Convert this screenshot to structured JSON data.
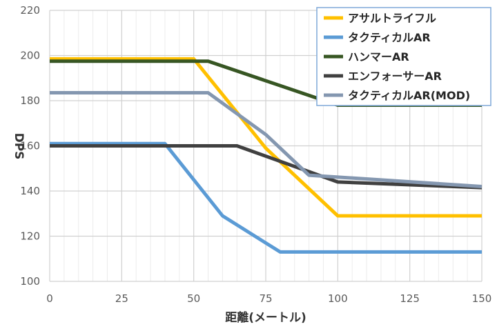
{
  "chart_data": {
    "type": "line",
    "title": "",
    "xlabel": "距離(メートル)",
    "ylabel": "DPS",
    "xlim": [
      0,
      150
    ],
    "ylim": [
      100,
      220
    ],
    "x_ticks": [
      0,
      25,
      50,
      75,
      100,
      125,
      150
    ],
    "y_ticks": [
      100,
      120,
      140,
      160,
      180,
      200,
      220
    ],
    "x_minor_step": 5,
    "grid": true,
    "legend_position": "top-right",
    "series": [
      {
        "name": "アサルトライフル",
        "color": "#FFC000",
        "points": [
          [
            0,
            198.5
          ],
          [
            50,
            198.5
          ],
          [
            75,
            159
          ],
          [
            100,
            129
          ],
          [
            150,
            129
          ]
        ]
      },
      {
        "name": "タクティカルAR",
        "color": "#5B9BD5",
        "points": [
          [
            0,
            161
          ],
          [
            40,
            161
          ],
          [
            60,
            129
          ],
          [
            80,
            113
          ],
          [
            150,
            113
          ]
        ]
      },
      {
        "name": "ハンマーAR",
        "color": "#375623",
        "points": [
          [
            0,
            197.5
          ],
          [
            55,
            197.5
          ],
          [
            100,
            178
          ],
          [
            150,
            178
          ]
        ]
      },
      {
        "name": "エンフォーサーAR",
        "color": "#404040",
        "points": [
          [
            0,
            160
          ],
          [
            65,
            160
          ],
          [
            100,
            144
          ],
          [
            150,
            141.5
          ]
        ]
      },
      {
        "name": "タクティカルAR(MOD)",
        "color": "#8497B0",
        "points": [
          [
            0,
            183.5
          ],
          [
            55,
            183.5
          ],
          [
            75,
            165
          ],
          [
            90,
            147
          ],
          [
            150,
            142
          ]
        ]
      }
    ]
  }
}
